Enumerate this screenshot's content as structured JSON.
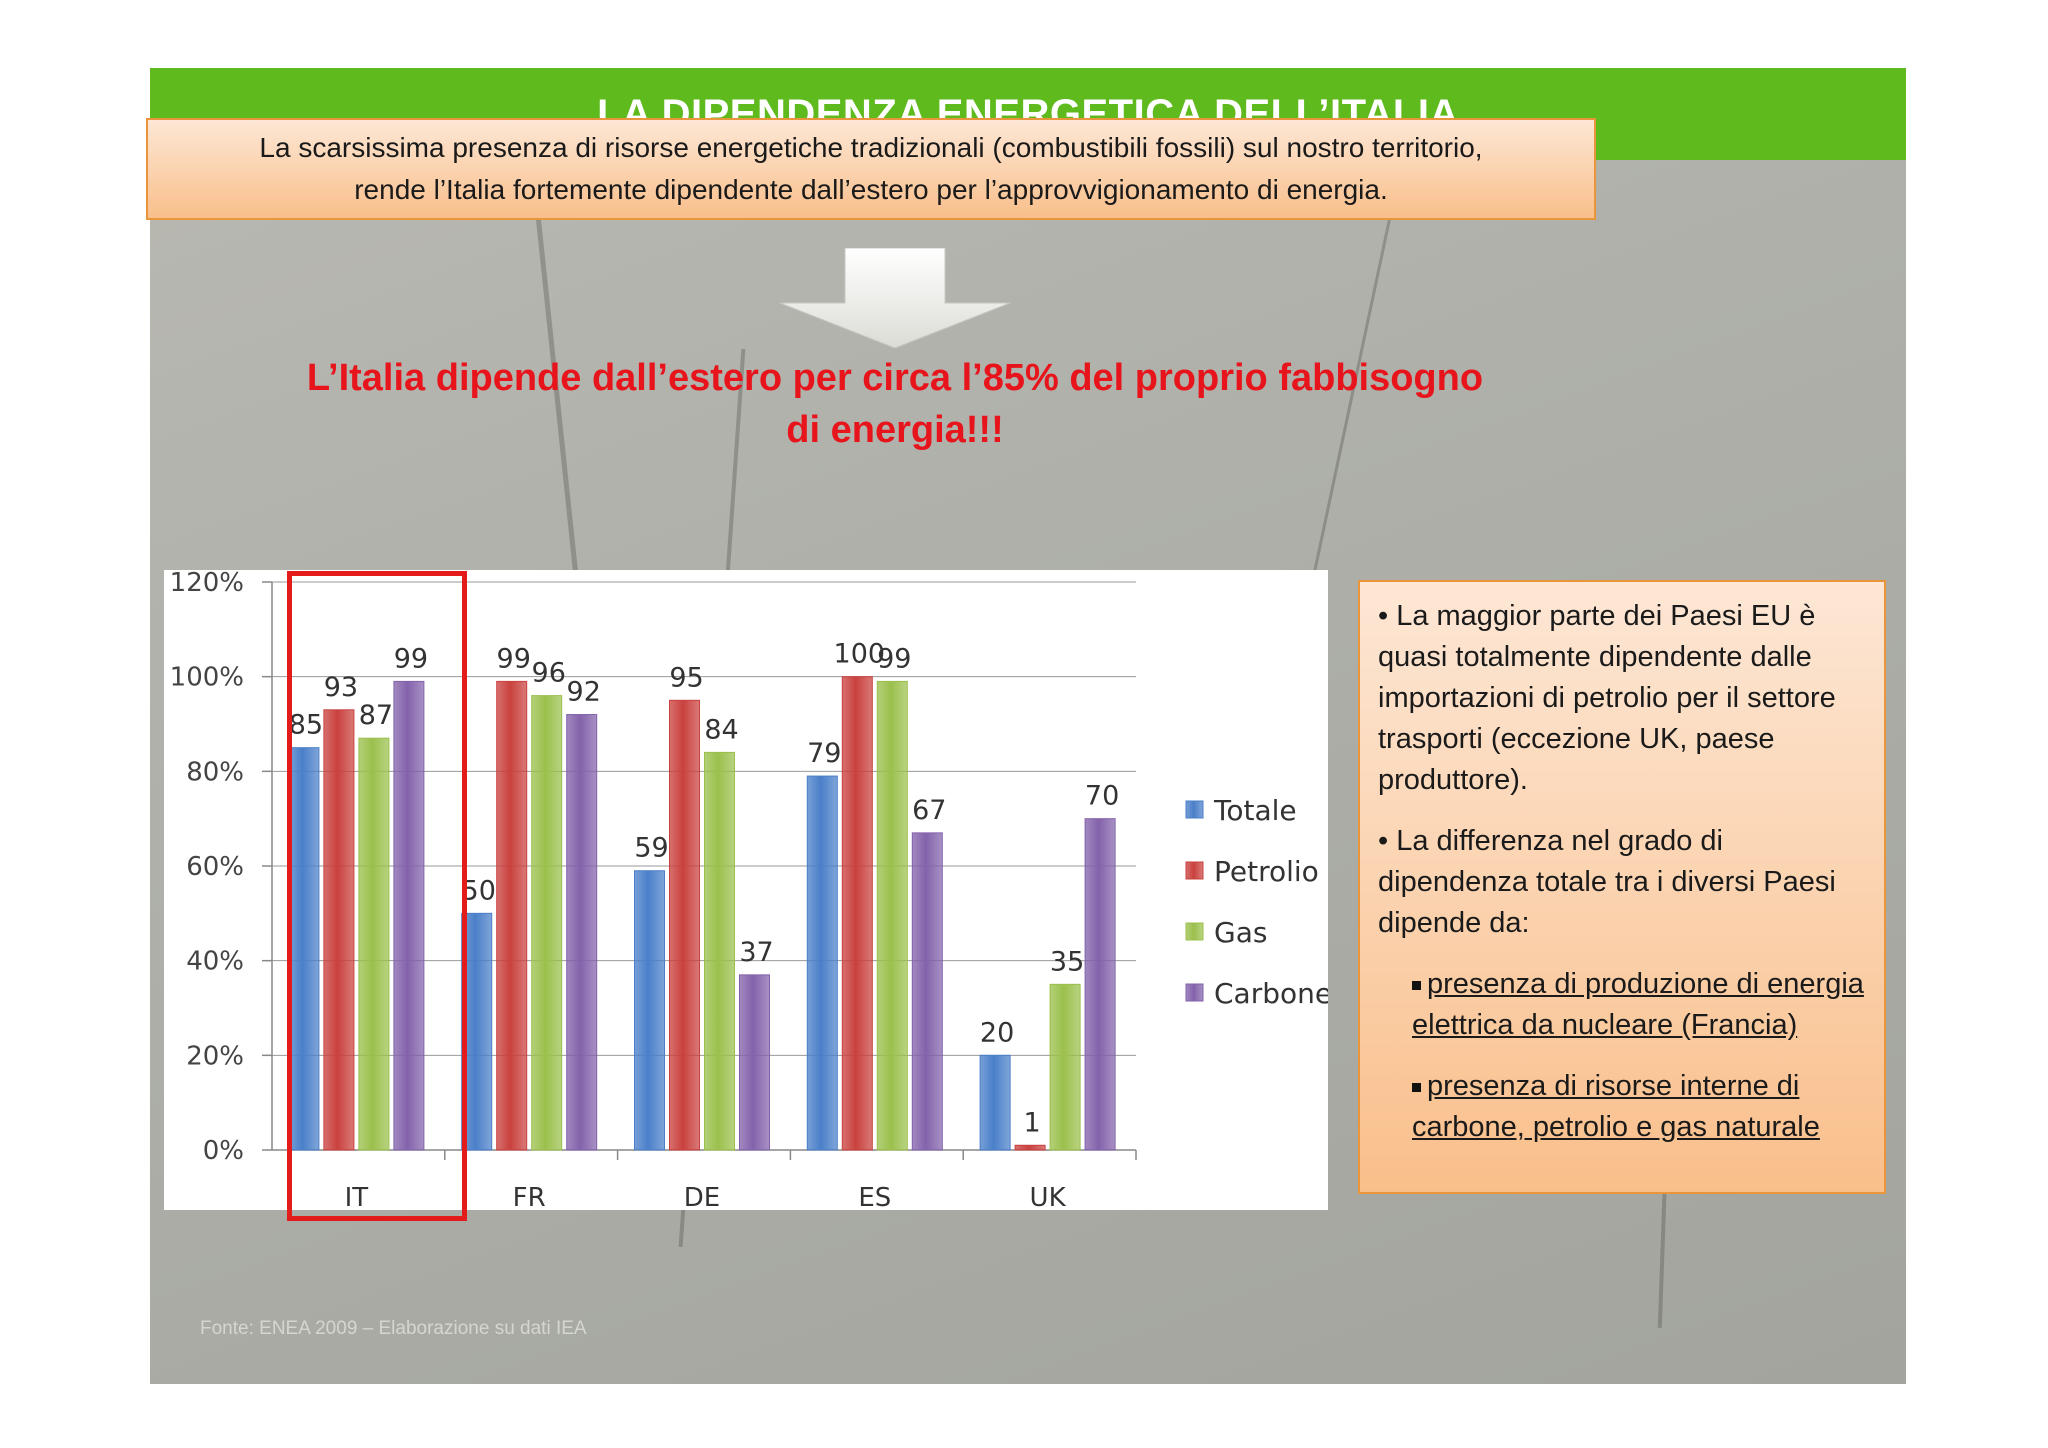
{
  "title": "LA DIPENDENZA ENERGETICA DELL’ITALIA",
  "intro": {
    "line1": "La scarsissima presenza di risorse energetiche tradizionali (combustibili fossili) sul nostro territorio,",
    "line2": "rende l’Italia fortemente dipendente dall’estero per l’approvvigionamento di energia."
  },
  "headline": {
    "line1": "L’Italia dipende dall’estero per circa l’85% del proprio fabbisogno",
    "line2": "di energia!!!"
  },
  "side_box": {
    "bullet1": "• La maggior parte dei Paesi EU è quasi totalmente dipendente dalle importazioni di petrolio per il settore trasporti (eccezione UK, paese produttore).",
    "bullet2": "• La differenza nel grado di dipendenza totale tra i diversi Paesi dipende da:",
    "sub1": "presenza di produzione di energia elettrica da nucleare (Francia)",
    "sub2": "presenza di risorse interne di carbone, petrolio e gas naturale"
  },
  "source": "Fonte: ENEA 2009 – Elaborazione su dati IEA",
  "colors": {
    "title_bar": "#5fba1e",
    "headline": "#e8141c",
    "highlight_box": "#e31b1b"
  },
  "chart_data": {
    "type": "bar",
    "categories": [
      "IT",
      "FR",
      "DE",
      "ES",
      "UK"
    ],
    "series": [
      {
        "name": "Totale",
        "color": "#4a7fc9",
        "values": [
          85,
          50,
          59,
          79,
          20
        ]
      },
      {
        "name": "Petrolio",
        "color": "#c9413e",
        "values": [
          93,
          99,
          95,
          100,
          1
        ]
      },
      {
        "name": "Gas",
        "color": "#9bc04c",
        "values": [
          87,
          96,
          84,
          99,
          35
        ]
      },
      {
        "name": "Carbone",
        "color": "#8362ab",
        "values": [
          99,
          92,
          37,
          67,
          70
        ]
      }
    ],
    "data_labels": [
      [
        "85",
        "93",
        "87",
        "99"
      ],
      [
        "50",
        "99",
        "96",
        "92"
      ],
      [
        "59",
        "95",
        "84",
        "37"
      ],
      [
        "79",
        "100",
        "99",
        "67"
      ],
      [
        "20",
        "1",
        "35",
        "70"
      ]
    ],
    "yticks": [
      "0%",
      "20%",
      "40%",
      "60%",
      "80%",
      "100%",
      "120%"
    ],
    "ylim": [
      0,
      120
    ],
    "ylabel": "",
    "xlabel": "",
    "grid": true,
    "legend": "right",
    "highlighted_category": "IT"
  }
}
